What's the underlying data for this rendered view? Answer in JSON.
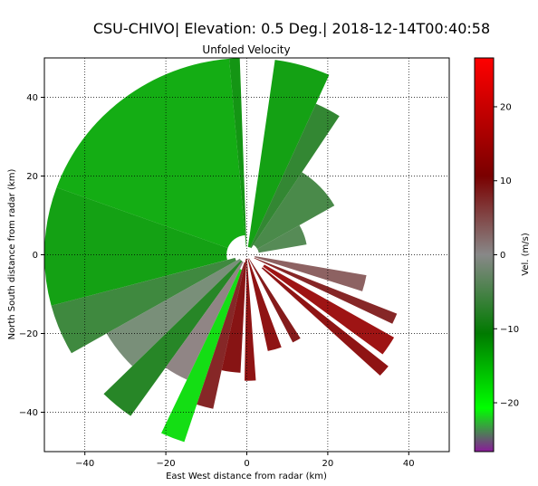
{
  "figure": {
    "suptitle": "CSU-CHIVO| Elevation: 0.5 Deg.| 2018-12-14T00:40:58"
  },
  "chart_data": {
    "type": "heatmap",
    "title": "Unfoled Velocity",
    "xlabel": "East West distance from radar (km)",
    "ylabel": "North South distance from radar (km)",
    "xlim": [
      -50,
      50
    ],
    "ylim": [
      -50,
      50
    ],
    "xticks": [
      -40,
      -20,
      0,
      20,
      40
    ],
    "yticks": [
      -40,
      -20,
      0,
      20,
      40
    ],
    "xtick_labels": [
      "−40",
      "−20",
      "0",
      "20",
      "40"
    ],
    "ytick_labels": [
      "−40",
      "−20",
      "0",
      "20",
      "40"
    ],
    "grid": true,
    "grid_style": "dotted",
    "colorbar": {
      "label": "Vel. (m/s)",
      "range": [
        -26.6,
        26.6
      ],
      "ticks": [
        -20,
        -10,
        0,
        10,
        20
      ],
      "tick_labels": [
        "−20",
        "−10",
        "0",
        "10",
        "20"
      ],
      "colors": [
        "#8a1a9a",
        "#00ff00",
        "#007a00",
        "#888888",
        "#7a0000",
        "#ff0000"
      ]
    },
    "sectors": [
      {
        "az_from": 290,
        "az_to": 355,
        "r_min": 5,
        "r_max": 50,
        "velocity": -14
      },
      {
        "az_from": 355,
        "az_to": 358,
        "r_min": 2,
        "r_max": 50,
        "velocity": -12
      },
      {
        "az_from": 8,
        "az_to": 24,
        "r_min": 2,
        "r_max": 50,
        "velocity": -13
      },
      {
        "az_from": 24,
        "az_to": 33,
        "r_min": 2,
        "r_max": 42,
        "velocity": -8
      },
      {
        "az_from": 33,
        "az_to": 60,
        "r_min": 3,
        "r_max": 25,
        "velocity": -6
      },
      {
        "az_from": 255,
        "az_to": 290,
        "r_min": 5,
        "r_max": 50,
        "velocity": -13
      },
      {
        "az_from": 240,
        "az_to": 255,
        "r_min": 3,
        "r_max": 50,
        "velocity": -7
      },
      {
        "az_from": 225,
        "az_to": 240,
        "r_min": 2,
        "r_max": 40,
        "velocity": -2
      },
      {
        "az_from": 215,
        "az_to": 225,
        "r_min": 2,
        "r_max": 50,
        "velocity": -9
      },
      {
        "az_from": 205,
        "az_to": 215,
        "r_min": 2,
        "r_max": 35,
        "velocity": 1
      },
      {
        "az_from": 198,
        "az_to": 205,
        "r_min": 4,
        "r_max": 50,
        "velocity": -18
      },
      {
        "az_from": 192,
        "az_to": 198,
        "r_min": 2,
        "r_max": 40,
        "velocity": 9
      },
      {
        "az_from": 183,
        "az_to": 192,
        "r_min": 1,
        "r_max": 30,
        "velocity": 11
      },
      {
        "az_from": 176,
        "az_to": 181,
        "r_min": 1,
        "r_max": 32,
        "velocity": 12
      },
      {
        "az_from": 160,
        "az_to": 168,
        "r_min": 1,
        "r_max": 25,
        "velocity": 12
      },
      {
        "az_from": 148,
        "az_to": 153,
        "r_min": 1,
        "r_max": 25,
        "velocity": 10
      },
      {
        "az_from": 129,
        "az_to": 133,
        "r_min": 5,
        "r_max": 45,
        "velocity": 12
      },
      {
        "az_from": 120,
        "az_to": 127,
        "r_min": 5,
        "r_max": 42,
        "velocity": 14
      },
      {
        "az_from": 112,
        "az_to": 116,
        "r_min": 2,
        "r_max": 40,
        "velocity": 9
      },
      {
        "az_from": 100,
        "az_to": 108,
        "r_min": 2,
        "r_max": 30,
        "velocity": 4
      },
      {
        "az_from": 60,
        "az_to": 80,
        "r_min": 3,
        "r_max": 15,
        "velocity": -5
      }
    ]
  }
}
